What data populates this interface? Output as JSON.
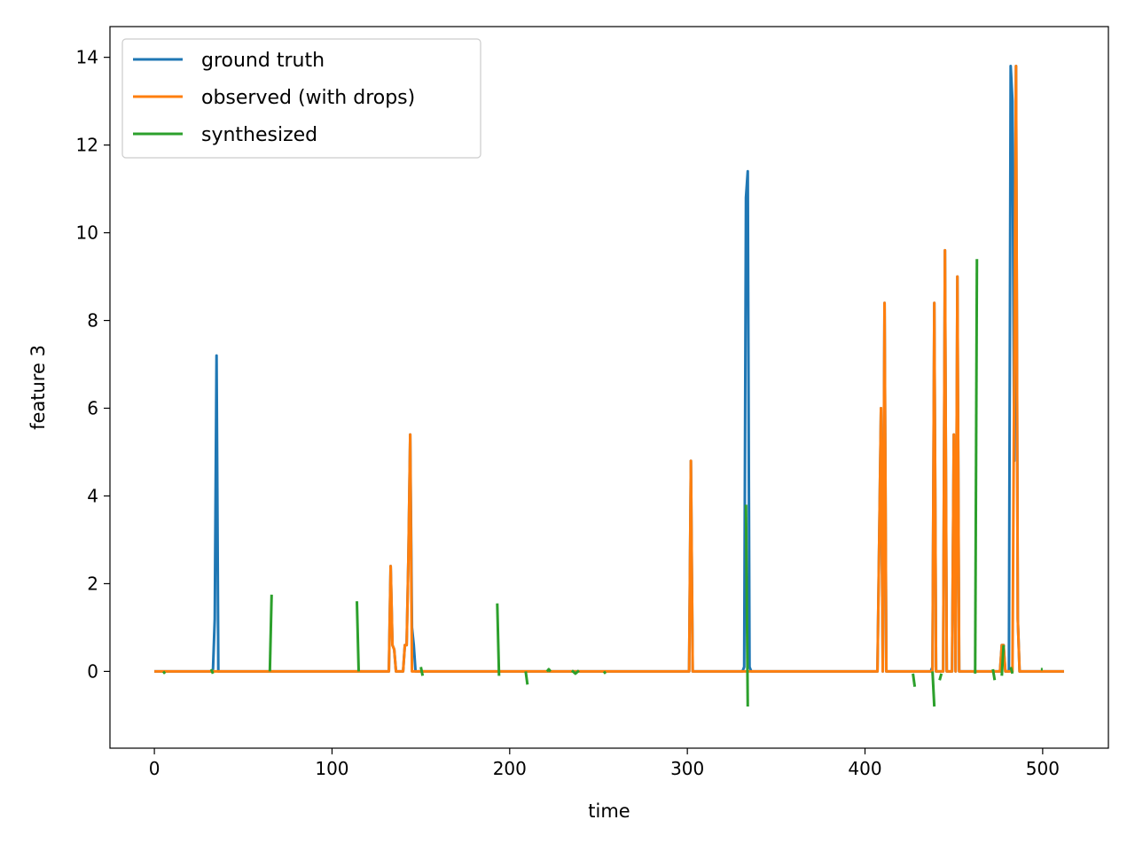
{
  "chart_data": {
    "type": "line",
    "title": "",
    "xlabel": "time",
    "ylabel": "feature 3",
    "xlim": [
      -25,
      537
    ],
    "ylim": [
      -1.75,
      14.7
    ],
    "x_ticks": [
      0,
      100,
      200,
      300,
      400,
      500
    ],
    "y_ticks": [
      0,
      2,
      4,
      6,
      8,
      10,
      12,
      14
    ],
    "grid": false,
    "legend_position": "top-left",
    "series": [
      {
        "name": "ground truth",
        "color": "#1f77b4",
        "points": [
          [
            0,
            0
          ],
          [
            32,
            0
          ],
          [
            33,
            0.05
          ],
          [
            34,
            1.2
          ],
          [
            35,
            7.2
          ],
          [
            36,
            0
          ],
          [
            37,
            0
          ],
          [
            132,
            0
          ],
          [
            133,
            2.4
          ],
          [
            134,
            0.6
          ],
          [
            135,
            0.5
          ],
          [
            136,
            0
          ],
          [
            140,
            0
          ],
          [
            141,
            0.6
          ],
          [
            142,
            0.6
          ],
          [
            143,
            2.6
          ],
          [
            144,
            5.4
          ],
          [
            145,
            1.0
          ],
          [
            146,
            0.6
          ],
          [
            147,
            0
          ],
          [
            300,
            0
          ],
          [
            301,
            0
          ],
          [
            302,
            4.8
          ],
          [
            303,
            0
          ],
          [
            331,
            0
          ],
          [
            332,
            0.1
          ],
          [
            333,
            10.8
          ],
          [
            334,
            11.4
          ],
          [
            335,
            0.1
          ],
          [
            336,
            0
          ],
          [
            407,
            0
          ],
          [
            409,
            6.0
          ],
          [
            410,
            0
          ],
          [
            411,
            8.4
          ],
          [
            412,
            0
          ],
          [
            437,
            0
          ],
          [
            438,
            0.1
          ],
          [
            439,
            8.4
          ],
          [
            440,
            0
          ],
          [
            444,
            0
          ],
          [
            445,
            9.6
          ],
          [
            446,
            0
          ],
          [
            449,
            0
          ],
          [
            450,
            5.4
          ],
          [
            451,
            0
          ],
          [
            452,
            9.0
          ],
          [
            453,
            0
          ],
          [
            476,
            0
          ],
          [
            477,
            0.6
          ],
          [
            478,
            0.6
          ],
          [
            479,
            0
          ],
          [
            481,
            0
          ],
          [
            482,
            13.8
          ],
          [
            483,
            13.0
          ],
          [
            484,
            4.8
          ],
          [
            485,
            13.8
          ],
          [
            486,
            1.2
          ],
          [
            487,
            0
          ],
          [
            512,
            0
          ]
        ]
      },
      {
        "name": "observed (with drops)",
        "color": "#ff7f0e",
        "points": [
          [
            0,
            0
          ],
          [
            132,
            0
          ],
          [
            133,
            2.4
          ],
          [
            134,
            0.6
          ],
          [
            135,
            0.5
          ],
          [
            136,
            0
          ],
          [
            140,
            0
          ],
          [
            141,
            0.6
          ],
          [
            142,
            0.6
          ],
          [
            143,
            2.6
          ],
          [
            144,
            5.4
          ],
          [
            145,
            0
          ],
          [
            300,
            0
          ],
          [
            301,
            0
          ],
          [
            302,
            4.8
          ],
          [
            303,
            0
          ],
          [
            407,
            0
          ],
          [
            409,
            6.0
          ],
          [
            410,
            0
          ],
          [
            411,
            8.4
          ],
          [
            412,
            0
          ],
          [
            438,
            0
          ],
          [
            439,
            8.4
          ],
          [
            440,
            0
          ],
          [
            444,
            0
          ],
          [
            445,
            9.6
          ],
          [
            446,
            0
          ],
          [
            449,
            0
          ],
          [
            450,
            5.4
          ],
          [
            451,
            0
          ],
          [
            452,
            9.0
          ],
          [
            453,
            0
          ],
          [
            476,
            0
          ],
          [
            477,
            0.6
          ],
          [
            478,
            0.6
          ],
          [
            479,
            0
          ],
          [
            483,
            0
          ],
          [
            485,
            13.8
          ],
          [
            486,
            1.2
          ],
          [
            487,
            0
          ],
          [
            512,
            0
          ]
        ]
      },
      {
        "name": "synthesized",
        "color": "#2ca02c",
        "segments": [
          [
            [
              5,
              0
            ],
            [
              6,
              -0.05
            ]
          ],
          [
            [
              32,
              0.05
            ],
            [
              33,
              -0.05
            ]
          ],
          [
            [
              65,
              0
            ],
            [
              66,
              1.75
            ]
          ],
          [
            [
              114,
              1.6
            ],
            [
              115,
              0
            ]
          ],
          [
            [
              150,
              0.1
            ],
            [
              151,
              -0.1
            ]
          ],
          [
            [
              193,
              1.55
            ],
            [
              194,
              -0.1
            ]
          ],
          [
            [
              209,
              0
            ],
            [
              210,
              -0.3
            ]
          ],
          [
            [
              221,
              0
            ],
            [
              222,
              0.05
            ],
            [
              223,
              0
            ]
          ],
          [
            [
              235,
              0.02
            ],
            [
              237,
              -0.05
            ],
            [
              239,
              0.02
            ]
          ],
          [
            [
              253,
              0
            ],
            [
              254,
              -0.05
            ]
          ],
          [
            [
              333,
              3.8
            ],
            [
              334,
              -0.8
            ]
          ],
          [
            [
              427,
              -0.05
            ],
            [
              428,
              -0.35
            ]
          ],
          [
            [
              438,
              0
            ],
            [
              439,
              -0.8
            ]
          ],
          [
            [
              442,
              -0.2
            ],
            [
              443,
              -0.05
            ]
          ],
          [
            [
              462,
              -0.05
            ],
            [
              463,
              9.4
            ]
          ],
          [
            [
              472,
              0.05
            ],
            [
              473,
              -0.2
            ]
          ],
          [
            [
              477,
              -0.1
            ],
            [
              478,
              0.6
            ]
          ],
          [
            [
              482,
              0.1
            ],
            [
              483,
              -0.05
            ]
          ],
          [
            [
              499,
              0.05
            ],
            [
              500,
              0.05
            ]
          ]
        ]
      }
    ]
  }
}
